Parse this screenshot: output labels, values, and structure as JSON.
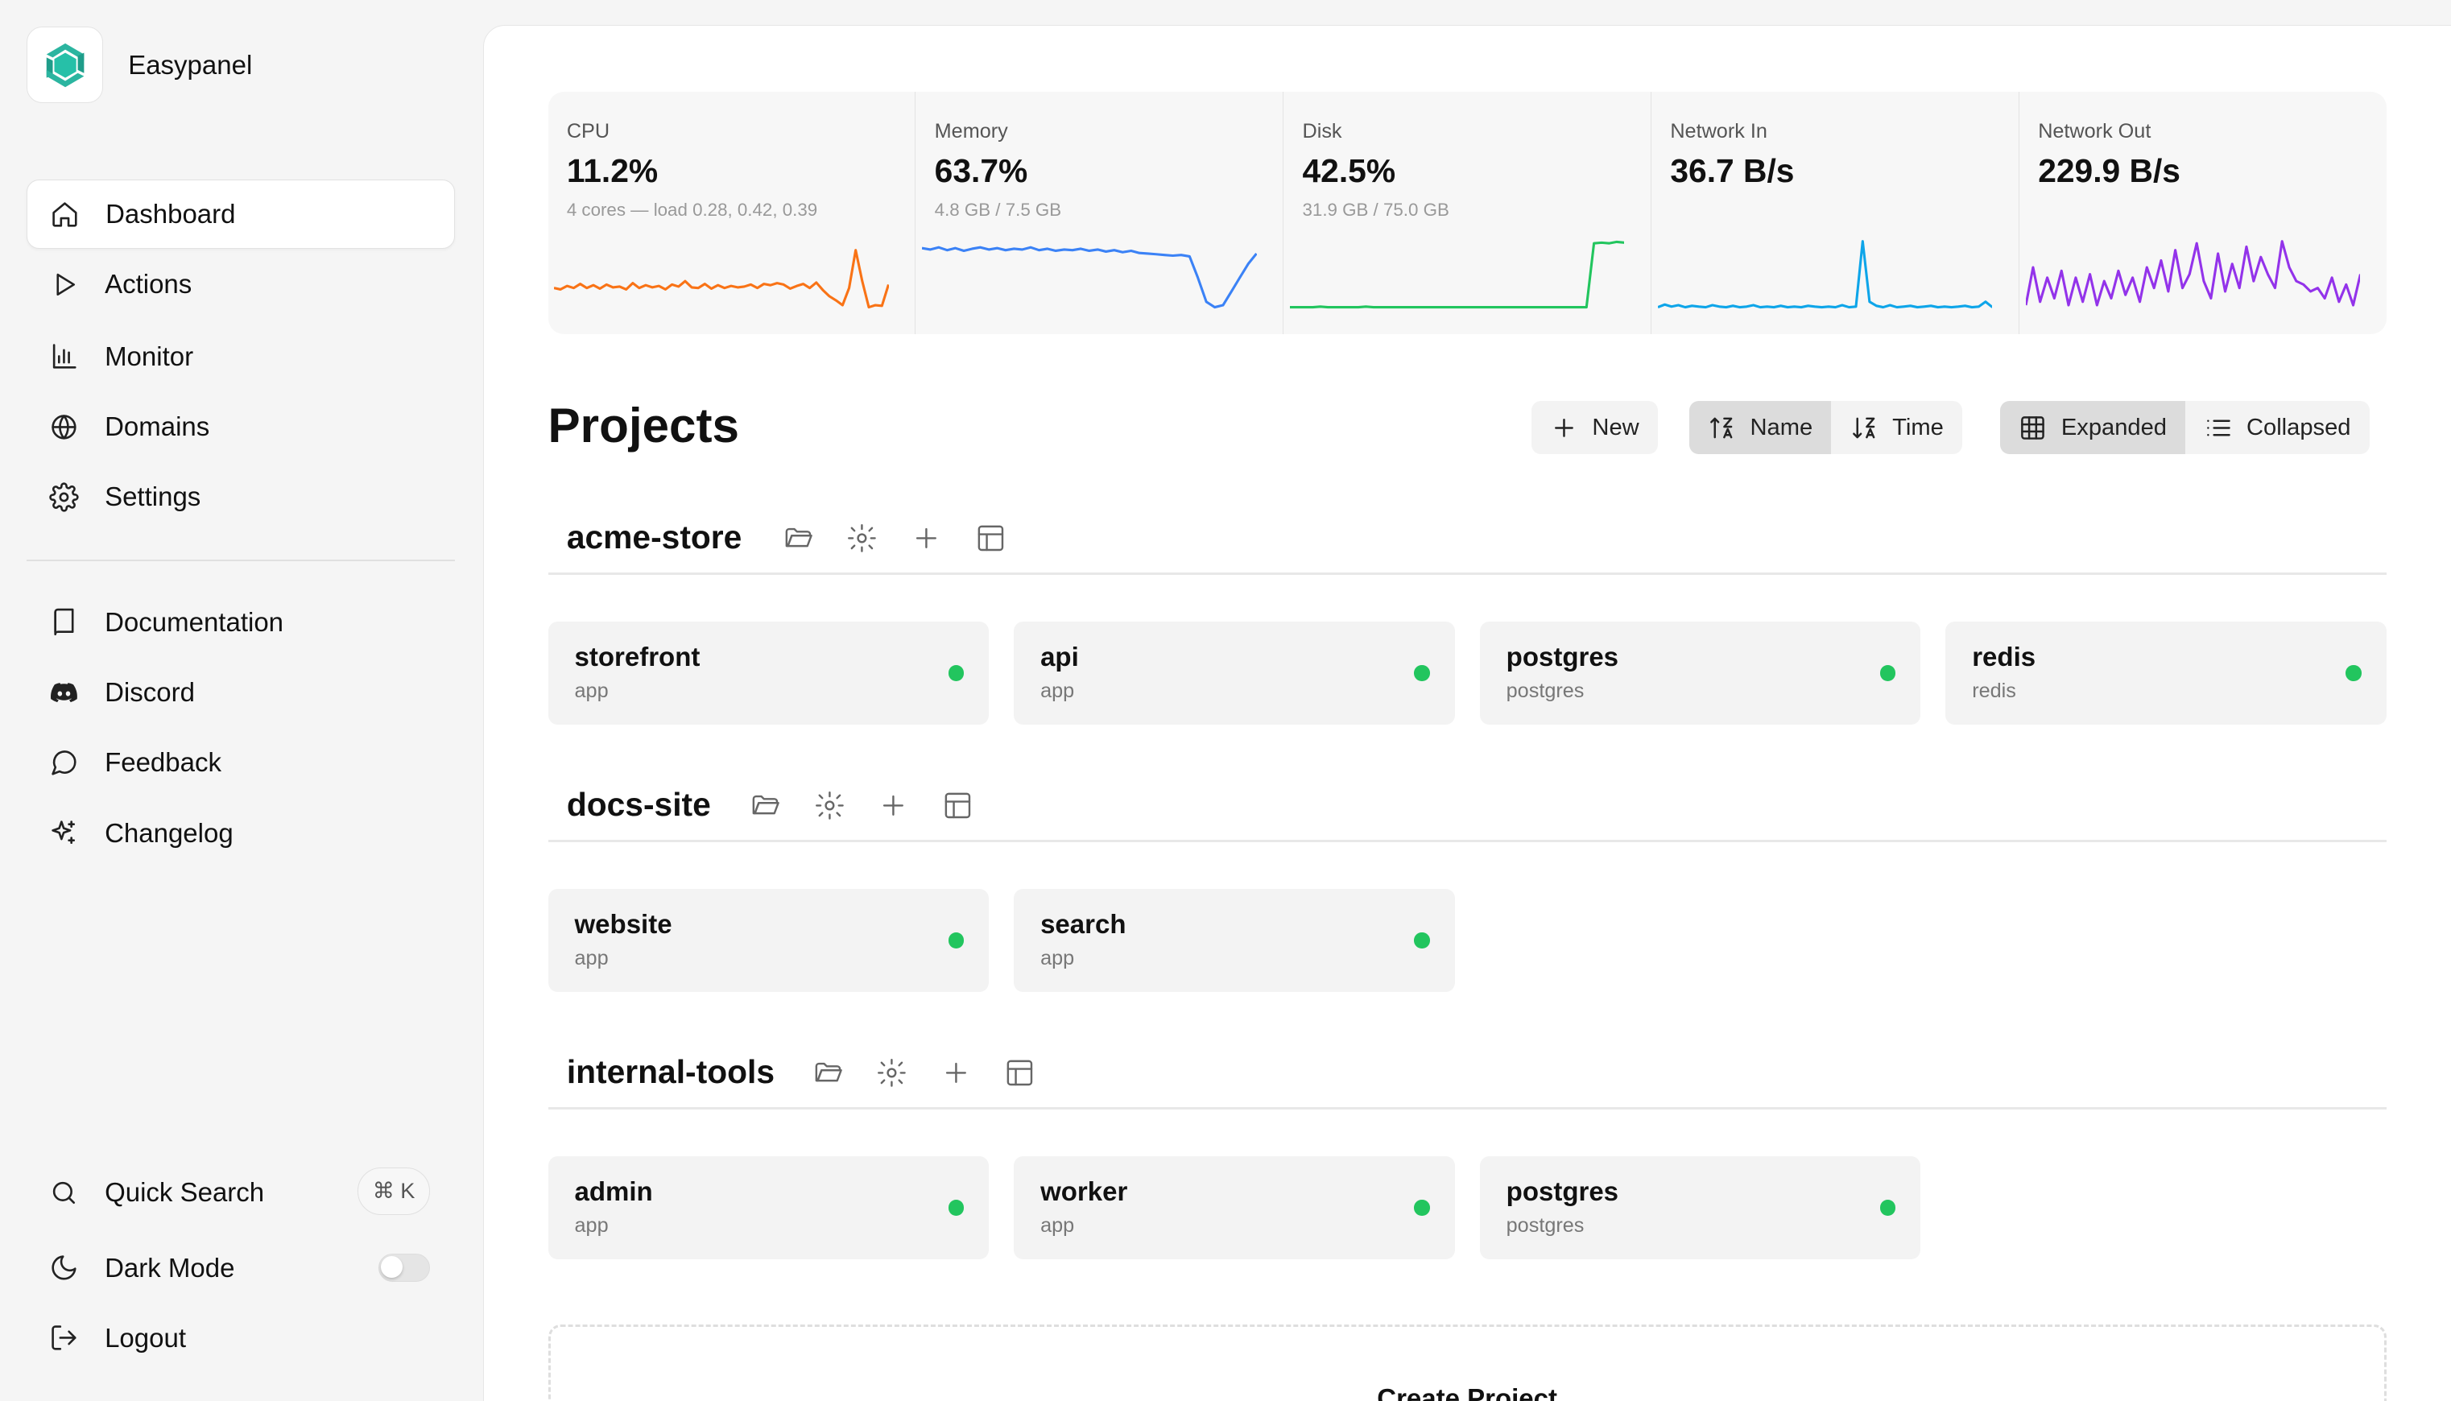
{
  "brand": {
    "name": "Easypanel"
  },
  "nav": [
    {
      "label": "Dashboard",
      "icon": "home-icon",
      "active": true
    },
    {
      "label": "Actions",
      "icon": "play-icon"
    },
    {
      "label": "Monitor",
      "icon": "bar-chart-icon"
    },
    {
      "label": "Domains",
      "icon": "globe-icon"
    },
    {
      "label": "Settings",
      "icon": "gear-icon"
    }
  ],
  "nav2": [
    {
      "label": "Documentation",
      "icon": "book-icon"
    },
    {
      "label": "Discord",
      "icon": "discord-icon"
    },
    {
      "label": "Feedback",
      "icon": "message-circle-icon"
    },
    {
      "label": "Changelog",
      "icon": "sparkles-icon"
    }
  ],
  "bottom": {
    "quick_search": "Quick Search",
    "shortcut": "⌘ K",
    "dark_mode": "Dark Mode",
    "dark_mode_on": false,
    "logout": "Logout"
  },
  "stats": [
    {
      "label": "CPU",
      "value": "11.2%",
      "sub": "4 cores — load 0.28, 0.42, 0.39",
      "color": "#f97316",
      "series": [
        0.3,
        0.28,
        0.33,
        0.3,
        0.36,
        0.3,
        0.34,
        0.29,
        0.35,
        0.31,
        0.32,
        0.28,
        0.37,
        0.3,
        0.34,
        0.31,
        0.33,
        0.28,
        0.35,
        0.32,
        0.4,
        0.31,
        0.3,
        0.36,
        0.29,
        0.34,
        0.3,
        0.33,
        0.31,
        0.32,
        0.35,
        0.3,
        0.36,
        0.34,
        0.37,
        0.35,
        0.29,
        0.33,
        0.36,
        0.3,
        0.38,
        0.27,
        0.18,
        0.12,
        0.05,
        0.3,
        0.85,
        0.4,
        0.02,
        0.05,
        0.04,
        0.35
      ]
    },
    {
      "label": "Memory",
      "value": "63.7%",
      "sub": "4.8 GB / 7.5 GB",
      "color": "#3b82f6",
      "series": [
        0.88,
        0.86,
        0.89,
        0.85,
        0.88,
        0.84,
        0.87,
        0.89,
        0.86,
        0.88,
        0.85,
        0.87,
        0.86,
        0.89,
        0.85,
        0.87,
        0.84,
        0.86,
        0.85,
        0.87,
        0.84,
        0.86,
        0.83,
        0.85,
        0.82,
        0.84,
        0.81,
        0.8,
        0.79,
        0.78,
        0.77,
        0.78,
        0.76,
        0.45,
        0.1,
        0.02,
        0.05,
        0.25,
        0.45,
        0.65,
        0.8
      ]
    },
    {
      "label": "Disk",
      "value": "42.5%",
      "sub": "31.9 GB / 75.0 GB",
      "color": "#22c55e",
      "series": [
        0.02,
        0.02,
        0.02,
        0.02,
        0.03,
        0.02,
        0.02,
        0.02,
        0.02,
        0.02,
        0.03,
        0.02,
        0.02,
        0.02,
        0.02,
        0.02,
        0.02,
        0.02,
        0.02,
        0.02,
        0.02,
        0.02,
        0.02,
        0.02,
        0.02,
        0.02,
        0.02,
        0.02,
        0.02,
        0.02,
        0.02,
        0.02,
        0.02,
        0.02,
        0.02,
        0.02,
        0.02,
        0.02,
        0.02,
        0.02,
        0.95,
        0.96,
        0.95,
        0.97,
        0.96
      ]
    },
    {
      "label": "Network In",
      "value": "36.7 B/s",
      "sub": "",
      "color": "#0ea5e9",
      "series": [
        0.02,
        0.06,
        0.03,
        0.05,
        0.02,
        0.04,
        0.03,
        0.02,
        0.05,
        0.03,
        0.02,
        0.04,
        0.02,
        0.03,
        0.05,
        0.02,
        0.03,
        0.02,
        0.04,
        0.02,
        0.03,
        0.02,
        0.04,
        0.03,
        0.02,
        0.03,
        0.02,
        0.05,
        0.02,
        0.03,
        0.98,
        0.1,
        0.04,
        0.02,
        0.05,
        0.02,
        0.03,
        0.04,
        0.02,
        0.03,
        0.04,
        0.02,
        0.03,
        0.02,
        0.03,
        0.04,
        0.02,
        0.03,
        0.1,
        0.02
      ]
    },
    {
      "label": "Network Out",
      "value": "229.9 B/s",
      "sub": "",
      "color": "#9333ea",
      "series": [
        0.05,
        0.6,
        0.1,
        0.45,
        0.15,
        0.55,
        0.05,
        0.45,
        0.1,
        0.5,
        0.05,
        0.4,
        0.15,
        0.55,
        0.2,
        0.45,
        0.1,
        0.6,
        0.3,
        0.7,
        0.25,
        0.85,
        0.3,
        0.5,
        0.95,
        0.4,
        0.15,
        0.8,
        0.25,
        0.65,
        0.3,
        0.9,
        0.4,
        0.75,
        0.5,
        0.3,
        0.98,
        0.6,
        0.4,
        0.35,
        0.25,
        0.3,
        0.15,
        0.45,
        0.1,
        0.35,
        0.05,
        0.5
      ]
    }
  ],
  "projects_title": "Projects",
  "toolbar": {
    "new_label": "New",
    "sort_name": "Name",
    "sort_time": "Time",
    "view_expanded": "Expanded",
    "view_collapsed": "Collapsed"
  },
  "projects": [
    {
      "name": "acme-store",
      "services": [
        {
          "name": "storefront",
          "type": "app",
          "status_color": "#22c55e"
        },
        {
          "name": "api",
          "type": "app",
          "status_color": "#22c55e"
        },
        {
          "name": "postgres",
          "type": "postgres",
          "status_color": "#22c55e"
        },
        {
          "name": "redis",
          "type": "redis",
          "status_color": "#22c55e"
        }
      ]
    },
    {
      "name": "docs-site",
      "services": [
        {
          "name": "website",
          "type": "app",
          "status_color": "#22c55e"
        },
        {
          "name": "search",
          "type": "app",
          "status_color": "#22c55e"
        }
      ]
    },
    {
      "name": "internal-tools",
      "services": [
        {
          "name": "admin",
          "type": "app",
          "status_color": "#22c55e"
        },
        {
          "name": "worker",
          "type": "app",
          "status_color": "#22c55e"
        },
        {
          "name": "postgres",
          "type": "postgres",
          "status_color": "#22c55e"
        }
      ]
    }
  ],
  "create_project": "Create Project"
}
